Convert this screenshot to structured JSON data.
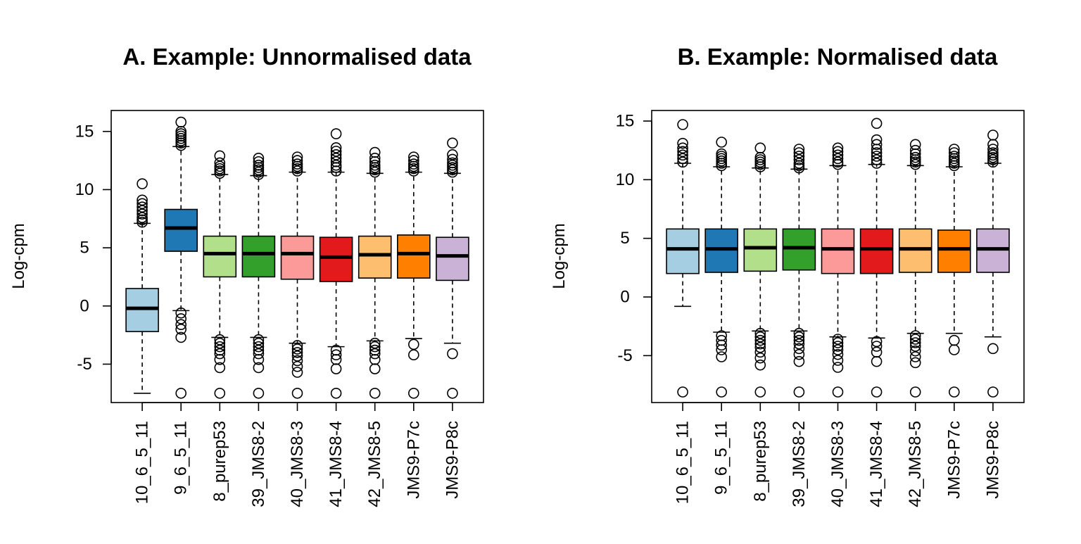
{
  "colors": [
    "#a6cee3",
    "#1f78b4",
    "#b2df8a",
    "#33a02c",
    "#fb9a99",
    "#e31a1c",
    "#fdbf6f",
    "#ff7f00",
    "#cab2d6"
  ],
  "chart_data": [
    {
      "type": "boxplot",
      "title": "A. Example: Unnormalised data",
      "ylabel": "Log-cpm",
      "xlabel": "",
      "ylim": [
        -8.3,
        16.8
      ],
      "yticks": [
        -5,
        0,
        5,
        10,
        15
      ],
      "categories": [
        "10_6_5_11",
        "9_6_5_11",
        "8_purep53",
        "39_JMS8-2",
        "40_JMS8-3",
        "41_JMS8-4",
        "42_JMS8-5",
        "JMS9-P7c",
        "JMS9-P8c"
      ],
      "boxes": [
        {
          "q1": -2.2,
          "median": -0.2,
          "q3": 1.5,
          "whisker_low": -7.5,
          "whisker_high": 7.1,
          "outliers_high": [
            7.2,
            7.4,
            7.6,
            7.9,
            8.2,
            8.5,
            8.8,
            9.1,
            10.5
          ],
          "outliers_low": []
        },
        {
          "q1": 4.7,
          "median": 6.7,
          "q3": 8.3,
          "whisker_low": -0.4,
          "whisker_high": 13.7,
          "outliers_high": [
            13.8,
            14.0,
            14.2,
            14.4,
            14.6,
            14.8,
            15.0,
            15.8
          ],
          "outliers_low": [
            -0.6,
            -1.1,
            -1.6,
            -2.0,
            -2.7,
            -7.5
          ]
        },
        {
          "q1": 2.5,
          "median": 4.5,
          "q3": 6.0,
          "whisker_low": -2.7,
          "whisker_high": 11.3,
          "outliers_high": [
            11.4,
            11.6,
            11.8,
            12.0,
            12.3,
            12.9
          ],
          "outliers_low": [
            -2.9,
            -3.2,
            -3.5,
            -3.8,
            -4.1,
            -4.6,
            -5.3,
            -7.5
          ]
        },
        {
          "q1": 2.5,
          "median": 4.5,
          "q3": 6.0,
          "whisker_low": -2.7,
          "whisker_high": 11.2,
          "outliers_high": [
            11.3,
            11.5,
            11.7,
            11.9,
            12.1,
            12.4,
            12.7
          ],
          "outliers_low": [
            -2.9,
            -3.2,
            -3.5,
            -3.8,
            -4.1,
            -4.6,
            -5.3,
            -7.5
          ]
        },
        {
          "q1": 2.3,
          "median": 4.5,
          "q3": 6.0,
          "whisker_low": -3.2,
          "whisker_high": 11.5,
          "outliers_high": [
            11.6,
            11.8,
            12.0,
            12.2,
            12.5,
            12.8
          ],
          "outliers_low": [
            -3.4,
            -3.7,
            -4.0,
            -4.3,
            -4.7,
            -5.2,
            -5.7,
            -7.5
          ]
        },
        {
          "q1": 2.1,
          "median": 4.2,
          "q3": 5.9,
          "whisker_low": -3.5,
          "whisker_high": 11.5,
          "outliers_high": [
            11.6,
            11.9,
            12.1,
            12.4,
            12.7,
            13.0,
            13.3,
            13.6,
            14.8
          ],
          "outliers_low": [
            -3.8,
            -4.2,
            -4.6,
            -5.4,
            -7.5
          ]
        },
        {
          "q1": 2.4,
          "median": 4.4,
          "q3": 6.0,
          "whisker_low": -3.0,
          "whisker_high": 11.4,
          "outliers_high": [
            11.5,
            11.7,
            11.9,
            12.1,
            12.4,
            12.7,
            13.2
          ],
          "outliers_low": [
            -3.2,
            -3.5,
            -3.8,
            -4.1,
            -4.6,
            -5.4,
            -7.5
          ]
        },
        {
          "q1": 2.4,
          "median": 4.5,
          "q3": 6.1,
          "whisker_low": -2.8,
          "whisker_high": 11.5,
          "outliers_high": [
            11.6,
            11.8,
            12.0,
            12.2,
            12.5,
            12.8
          ],
          "outliers_low": [
            -3.3,
            -4.2,
            -7.5
          ]
        },
        {
          "q1": 2.2,
          "median": 4.3,
          "q3": 5.9,
          "whisker_low": -3.2,
          "whisker_high": 11.4,
          "outliers_high": [
            11.5,
            11.7,
            11.9,
            12.1,
            12.3,
            12.6,
            13.0,
            14.0
          ],
          "outliers_low": [
            -4.1,
            -7.5
          ]
        }
      ]
    },
    {
      "type": "boxplot",
      "title": "B. Example: Normalised data",
      "ylabel": "Log-cpm",
      "xlabel": "",
      "ylim": [
        -9.0,
        15.9
      ],
      "yticks": [
        -5,
        0,
        5,
        10,
        15
      ],
      "categories": [
        "10_6_5_11",
        "9_6_5_11",
        "8_purep53",
        "39_JMS8-2",
        "40_JMS8-3",
        "41_JMS8-4",
        "42_JMS8-5",
        "JMS9-P7c",
        "JMS9-P8c"
      ],
      "boxes": [
        {
          "q1": 2.0,
          "median": 4.1,
          "q3": 5.8,
          "whisker_low": -0.8,
          "whisker_high": 11.4,
          "outliers_high": [
            11.5,
            11.8,
            12.1,
            12.4,
            12.7,
            13.1,
            14.7
          ],
          "outliers_low": [
            -8.1
          ]
        },
        {
          "q1": 2.1,
          "median": 4.1,
          "q3": 5.8,
          "whisker_low": -3.0,
          "whisker_high": 11.1,
          "outliers_high": [
            11.2,
            11.4,
            11.6,
            11.8,
            12.0,
            12.2,
            13.2
          ],
          "outliers_low": [
            -3.3,
            -3.7,
            -4.1,
            -4.5,
            -5.1,
            -8.1
          ]
        },
        {
          "q1": 2.2,
          "median": 4.2,
          "q3": 5.8,
          "whisker_low": -2.9,
          "whisker_high": 11.0,
          "outliers_high": [
            11.1,
            11.3,
            11.5,
            11.7,
            11.9,
            12.7
          ],
          "outliers_low": [
            -3.1,
            -3.4,
            -3.7,
            -4.0,
            -4.3,
            -4.7,
            -5.2,
            -5.8,
            -8.1
          ]
        },
        {
          "q1": 2.3,
          "median": 4.2,
          "q3": 5.8,
          "whisker_low": -2.9,
          "whisker_high": 10.9,
          "outliers_high": [
            11.0,
            11.2,
            11.4,
            11.7,
            12.0,
            12.3,
            12.6
          ],
          "outliers_low": [
            -3.1,
            -3.4,
            -3.7,
            -4.0,
            -4.4,
            -4.9,
            -5.5,
            -8.1
          ]
        },
        {
          "q1": 2.0,
          "median": 4.1,
          "q3": 5.8,
          "whisker_low": -3.4,
          "whisker_high": 11.2,
          "outliers_high": [
            11.3,
            11.5,
            11.8,
            12.1,
            12.4,
            12.7
          ],
          "outliers_low": [
            -3.6,
            -3.9,
            -4.2,
            -4.5,
            -4.9,
            -5.4,
            -6.0,
            -8.1
          ]
        },
        {
          "q1": 2.0,
          "median": 4.1,
          "q3": 5.8,
          "whisker_low": -3.5,
          "whisker_high": 11.3,
          "outliers_high": [
            11.4,
            11.7,
            12.0,
            12.3,
            12.6,
            13.0,
            13.4,
            14.8
          ],
          "outliers_low": [
            -3.8,
            -4.2,
            -4.7,
            -5.5,
            -8.1
          ]
        },
        {
          "q1": 2.1,
          "median": 4.1,
          "q3": 5.8,
          "whisker_low": -3.1,
          "whisker_high": 11.2,
          "outliers_high": [
            11.3,
            11.5,
            11.7,
            11.9,
            12.2,
            12.5,
            13.0
          ],
          "outliers_low": [
            -3.3,
            -3.6,
            -3.9,
            -4.2,
            -4.6,
            -5.1,
            -5.6,
            -8.1
          ]
        },
        {
          "q1": 2.1,
          "median": 4.1,
          "q3": 5.7,
          "whisker_low": -3.1,
          "whisker_high": 11.1,
          "outliers_high": [
            11.2,
            11.4,
            11.6,
            11.8,
            12.0,
            12.3,
            12.6
          ],
          "outliers_low": [
            -3.7,
            -4.5,
            -8.1
          ]
        },
        {
          "q1": 2.1,
          "median": 4.1,
          "q3": 5.8,
          "whisker_low": -3.4,
          "whisker_high": 11.4,
          "outliers_high": [
            11.5,
            11.7,
            11.9,
            12.1,
            12.3,
            12.6,
            13.0,
            13.8
          ],
          "outliers_low": [
            -4.4,
            -8.1
          ]
        }
      ]
    }
  ]
}
